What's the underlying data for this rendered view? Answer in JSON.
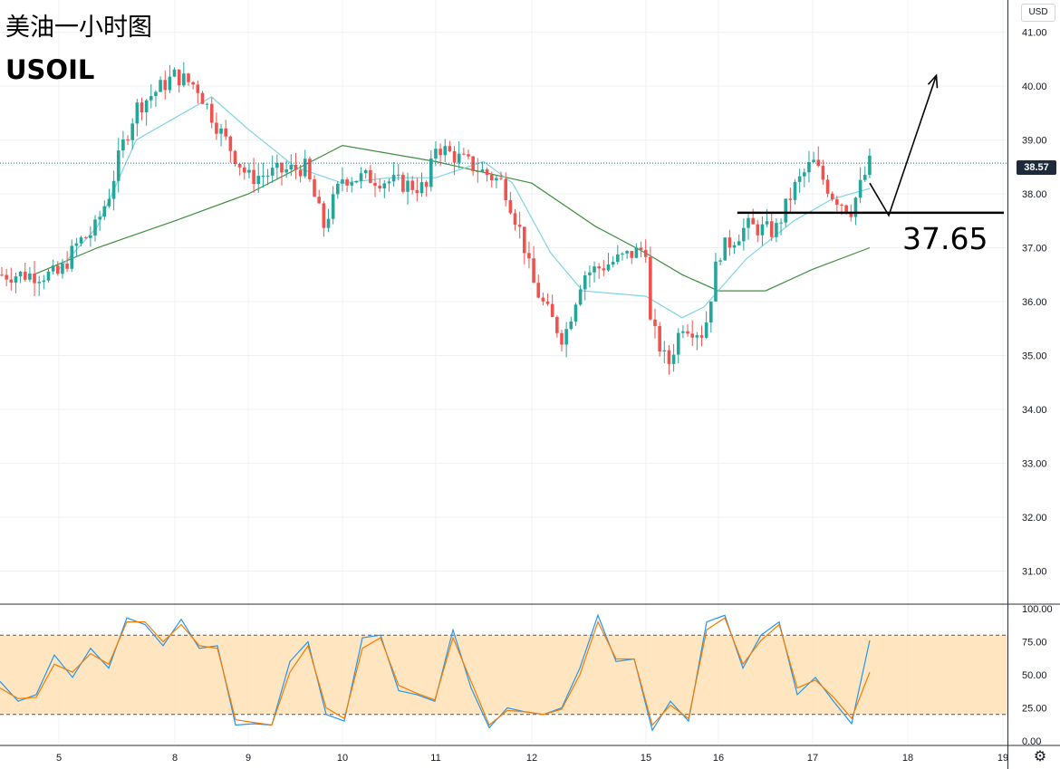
{
  "header": {
    "title": "美油一小时图",
    "symbol": "USOIL"
  },
  "price_axis": {
    "currency": "USD",
    "current_price": "38.57"
  },
  "annotation": {
    "level": "37.65"
  },
  "colors": {
    "up": "#26a69a",
    "down": "#ef5350",
    "ma_fast": "#7fd3e8",
    "ma_slow": "#3f8f3f",
    "stoch_k": "#2196f3",
    "stoch_d": "#f57c00",
    "stoch_band": "#ffe0b2",
    "level_line": "#000000"
  },
  "chart_data": [
    {
      "type": "candlestick",
      "symbol": "USOIL",
      "timeframe": "1h",
      "x_ticks": [
        "5",
        "8",
        "9",
        "10",
        "11",
        "12",
        "15",
        "16",
        "17",
        "18",
        "19"
      ],
      "y_ticks": [
        "31.00",
        "32.00",
        "33.00",
        "34.00",
        "35.00",
        "36.00",
        "37.00",
        "38.00",
        "39.00",
        "40.00",
        "41.00"
      ],
      "ylim": [
        30.4,
        41.6
      ],
      "current_price": 38.57,
      "level_37_65": 37.65,
      "close_path": [
        [
          "5",
          36.5
        ],
        [
          "5.5",
          37.1
        ],
        [
          "5.9",
          37.3
        ],
        [
          "6.3",
          38.0
        ],
        [
          "6.6",
          38.8
        ],
        [
          "7.0",
          39.6
        ],
        [
          "8",
          40.2
        ],
        [
          "8.3",
          40.0
        ],
        [
          "8.6",
          39.2
        ],
        [
          "9",
          38.3
        ],
        [
          "9.3",
          38.4
        ],
        [
          "9.6",
          38.5
        ],
        [
          "9.8",
          37.4
        ],
        [
          "10",
          38.3
        ],
        [
          "10.3",
          38.3
        ],
        [
          "10.6",
          38.2
        ],
        [
          "10.9",
          38.1
        ],
        [
          "11",
          38.9
        ],
        [
          "11.3",
          38.6
        ],
        [
          "11.7",
          38.2
        ],
        [
          "11.9",
          37.2
        ],
        [
          "12",
          36.4
        ],
        [
          "12.2",
          35.9
        ],
        [
          "12.5",
          35.3
        ],
        [
          "12.8",
          36.5
        ],
        [
          "13.2",
          37.0
        ],
        [
          "13.5",
          36.6
        ],
        [
          "15",
          35.8
        ],
        [
          "15.3",
          34.8
        ],
        [
          "15.5",
          35.6
        ],
        [
          "15.8",
          35.4
        ],
        [
          "16",
          36.9
        ],
        [
          "16.3",
          37.4
        ],
        [
          "16.6",
          37.3
        ],
        [
          "16.8",
          38.1
        ],
        [
          "17",
          38.6
        ],
        [
          "17.2",
          38.0
        ],
        [
          "17.4",
          37.7
        ],
        [
          "17.6",
          38.57
        ]
      ],
      "ma_fast_path": [
        [
          "5",
          36.6
        ],
        [
          "6",
          37.4
        ],
        [
          "7",
          39.0
        ],
        [
          "8.5",
          39.8
        ],
        [
          "9",
          39.2
        ],
        [
          "9.5",
          38.5
        ],
        [
          "10",
          38.2
        ],
        [
          "10.5",
          38.3
        ],
        [
          "11",
          38.3
        ],
        [
          "11.5",
          38.6
        ],
        [
          "11.8",
          38.2
        ],
        [
          "12.3",
          36.9
        ],
        [
          "12.8",
          36.2
        ],
        [
          "13.2",
          36.1
        ],
        [
          "15",
          36.1
        ],
        [
          "15.5",
          35.7
        ],
        [
          "15.8",
          35.9
        ],
        [
          "16.3",
          36.8
        ],
        [
          "16.8",
          37.5
        ],
        [
          "17.2",
          37.9
        ],
        [
          "17.6",
          38.1
        ]
      ],
      "ma_slow_path": [
        [
          "4.6",
          36.5
        ],
        [
          "6",
          37.0
        ],
        [
          "8",
          37.5
        ],
        [
          "9",
          38.0
        ],
        [
          "10",
          38.9
        ],
        [
          "11",
          38.6
        ],
        [
          "12",
          38.2
        ],
        [
          "13",
          37.4
        ],
        [
          "15",
          36.9
        ],
        [
          "15.5",
          36.5
        ],
        [
          "16",
          36.2
        ],
        [
          "16.5",
          36.2
        ],
        [
          "17",
          36.6
        ],
        [
          "17.6",
          37.0
        ]
      ],
      "projection": [
        [
          "17.6",
          38.2
        ],
        [
          "17.8",
          37.6
        ],
        [
          "18.3",
          40.2
        ]
      ]
    },
    {
      "type": "line",
      "name": "stochastic",
      "y_ticks": [
        "0.00",
        "25.00",
        "50.00",
        "75.00",
        "100.00"
      ],
      "ylim": [
        0,
        100
      ],
      "bands": [
        20,
        80
      ],
      "series": [
        {
          "key": "k",
          "values": [
            45,
            30,
            35,
            65,
            48,
            70,
            55,
            93,
            88,
            72,
            92,
            70,
            72,
            12,
            13,
            12,
            60,
            75,
            20,
            15,
            78,
            80,
            38,
            35,
            30,
            84,
            40,
            10,
            25,
            22,
            20,
            25,
            55,
            95,
            60,
            62,
            8,
            30,
            15,
            90,
            95,
            55,
            80,
            90,
            35,
            48,
            30,
            13,
            76
          ]
        },
        {
          "key": "d",
          "values": [
            40,
            32,
            33,
            58,
            52,
            66,
            58,
            90,
            90,
            75,
            88,
            72,
            70,
            16,
            14,
            12,
            52,
            72,
            25,
            17,
            70,
            78,
            42,
            36,
            31,
            78,
            45,
            12,
            23,
            22,
            20,
            24,
            50,
            90,
            62,
            62,
            12,
            27,
            17,
            84,
            93,
            58,
            76,
            88,
            40,
            46,
            33,
            17,
            52
          ]
        }
      ]
    }
  ]
}
